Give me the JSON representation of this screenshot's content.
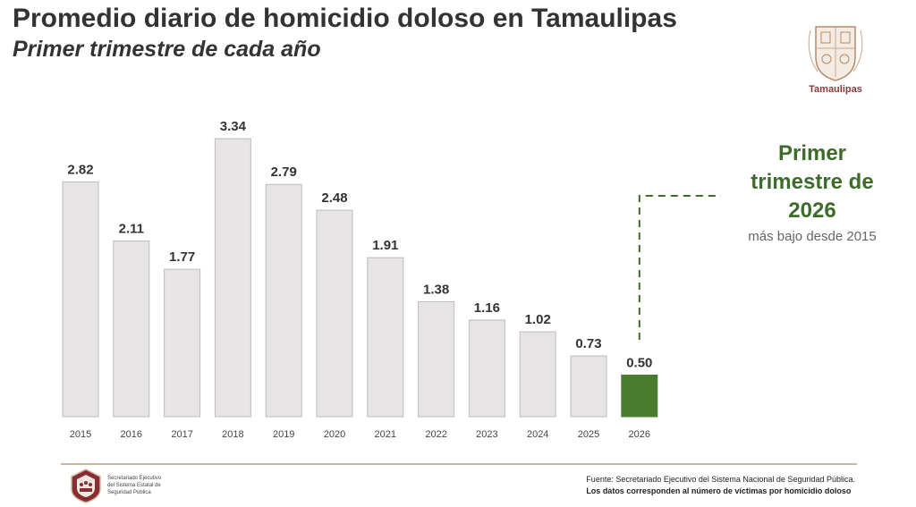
{
  "header": {
    "title": "Promedio diario de homicidio doloso en Tamaulipas",
    "subtitle": "Primer trimestre de cada año"
  },
  "logo": {
    "text": "Tamaulipas",
    "icon": "state-coat-of-arms-icon"
  },
  "chart_data": {
    "type": "bar",
    "categories": [
      "2015",
      "2016",
      "2017",
      "2018",
      "2019",
      "2020",
      "2021",
      "2022",
      "2023",
      "2024",
      "2025",
      "2026"
    ],
    "values": [
      2.82,
      2.11,
      1.77,
      3.34,
      2.79,
      2.48,
      1.91,
      1.38,
      1.16,
      1.02,
      0.73,
      0.5
    ],
    "value_labels": [
      "2.82",
      "2.11",
      "1.77",
      "3.34",
      "2.79",
      "2.48",
      "1.91",
      "1.38",
      "1.16",
      "1.02",
      "0.73",
      "0.50"
    ],
    "ylim": [
      0,
      3.34
    ],
    "grid": false,
    "colors": {
      "default": "#e6e4e4",
      "highlight": "#4a7c2f",
      "border": "#bdbbbb"
    },
    "highlight_index": 11,
    "annotation": {
      "line1": "Primer",
      "line2": "trimestre de",
      "line3": "2026",
      "note": "más bajo desde 2015",
      "color": "#3d6b2a"
    }
  },
  "footer": {
    "org_line1": "Secretariado Ejecutivo",
    "org_line2": "del Sistema Estatal de",
    "org_line3": "Seguridad Pública",
    "source_line1": "Fuente: Secretariado Ejecutivo del Sistema Nacional de Seguridad Pública.",
    "source_line2": "Los datos corresponden al número de víctimas por homicidio doloso",
    "seal_icon": "security-secretariat-seal-icon"
  }
}
